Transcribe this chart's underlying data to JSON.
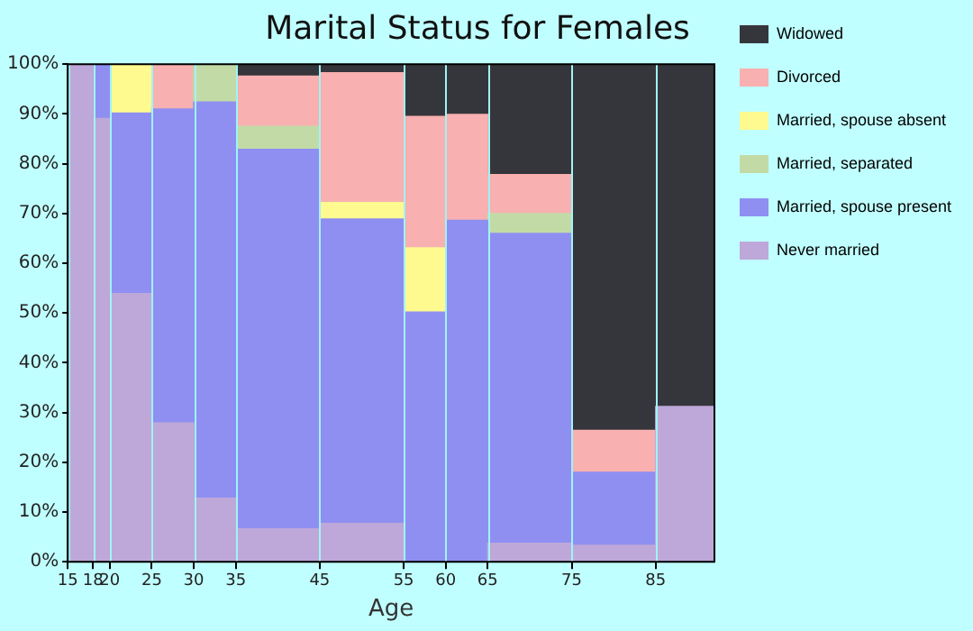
{
  "chart_data": {
    "type": "bar",
    "stacked": true,
    "title": "Marital Status for Females",
    "xlabel": "Age",
    "x": [
      16.5,
      19,
      22.5,
      27.5,
      32.5,
      40,
      50,
      57.5,
      62.5,
      70,
      80,
      88.5
    ],
    "xlim": [
      15,
      92
    ],
    "xticks": [
      15,
      18,
      20,
      25,
      30,
      35,
      45,
      55,
      60,
      65,
      75,
      85
    ],
    "ylim": [
      0,
      100
    ],
    "yticks": [
      {
        "value": 0,
        "label": "0%"
      },
      {
        "value": 10,
        "label": "10%"
      },
      {
        "value": 20,
        "label": "20%"
      },
      {
        "value": 30,
        "label": "30%"
      },
      {
        "value": 40,
        "label": "40%"
      },
      {
        "value": 50,
        "label": "50%"
      },
      {
        "value": 60,
        "label": "60%"
      },
      {
        "value": 70,
        "label": "70%"
      },
      {
        "value": 80,
        "label": "80%"
      },
      {
        "value": 90,
        "label": "90%"
      },
      {
        "value": 100,
        "label": "100%"
      }
    ],
    "grid": "x",
    "legend": "right",
    "series": [
      {
        "name": "Never married",
        "color": "#bea8d9",
        "values": [
          100,
          89.1,
          53.9,
          27.9,
          12.8,
          6.6,
          7.7,
          null,
          null,
          3.7,
          3.3,
          31.2
        ]
      },
      {
        "name": "Married, spouse present",
        "color": "#8f8ff2",
        "values": [
          null,
          10.9,
          36.3,
          63.1,
          79.6,
          76.3,
          61.2,
          50.2,
          68.6,
          62.3,
          14.7,
          null
        ]
      },
      {
        "name": "Married, separated",
        "color": "#c2dba6",
        "values": [
          null,
          null,
          null,
          null,
          7.6,
          4.6,
          null,
          null,
          null,
          4.0,
          null,
          null
        ]
      },
      {
        "name": "Married, spouse absent",
        "color": "#fefa90",
        "values": [
          null,
          null,
          9.8,
          null,
          null,
          null,
          3.3,
          12.9,
          null,
          null,
          null,
          null
        ]
      },
      {
        "name": "Divorced",
        "color": "#f8b0b0",
        "values": [
          null,
          null,
          null,
          9.0,
          null,
          10.1,
          26.1,
          26.4,
          21.3,
          7.8,
          8.4,
          null
        ]
      },
      {
        "name": "Widowed",
        "color": "#35363b",
        "values": [
          null,
          null,
          null,
          null,
          null,
          2.4,
          1.7,
          10.5,
          10.1,
          22.2,
          73.6,
          68.8
        ]
      }
    ]
  }
}
